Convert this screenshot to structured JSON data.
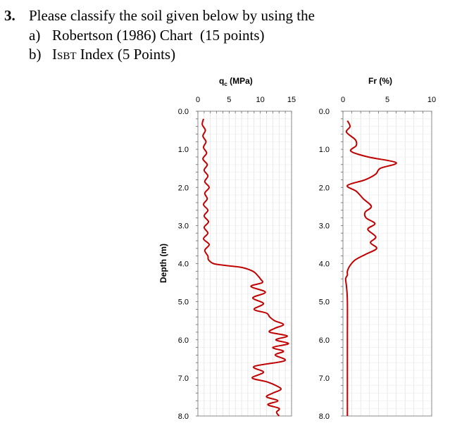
{
  "question": {
    "number": "3.",
    "text": "Please classify the soil given below by using the",
    "a_marker": "a)",
    "a_text": "Robertson (1986) Chart  (15 points)",
    "b_marker": "b)",
    "b_index_I": "I",
    "b_index_sub": "SBT",
    "b_text": " Index (5 Points)"
  },
  "colors": {
    "curve": "#c00000",
    "grid": "#d9d9d9",
    "axis": "#000000"
  },
  "chart_data": [
    {
      "type": "line",
      "title": "q꜀ (MPa)",
      "title_main": "q",
      "title_sub": "c",
      "title_rest": " (MPa)",
      "ylabel": "Depth (m)",
      "xlim": [
        0,
        15
      ],
      "ylim": [
        0,
        8
      ],
      "x_ticks": [
        "0",
        "5",
        "10",
        "15"
      ],
      "y_ticks": [
        "0.0",
        "1.0",
        "2.0",
        "3.0",
        "4.0",
        "5.0",
        "6.0",
        "7.0",
        "8.0"
      ],
      "grid": true,
      "series": [
        {
          "depth": [
            0.2,
            0.35,
            0.5,
            0.65,
            0.8,
            0.95,
            1.1,
            1.25,
            1.4,
            1.55,
            1.7,
            1.85,
            2.0,
            2.15,
            2.3,
            2.45,
            2.6,
            2.75,
            2.9,
            3.05,
            3.2,
            3.35,
            3.5,
            3.65,
            3.8,
            3.9,
            4.0,
            4.05,
            4.1,
            4.2,
            4.3,
            4.4,
            4.5,
            4.6,
            4.75,
            4.9,
            5.05,
            5.2,
            5.3,
            5.4,
            5.5,
            5.6,
            5.7,
            5.8,
            5.9,
            6.0,
            6.1,
            6.2,
            6.3,
            6.4,
            6.55,
            6.7,
            6.85,
            7.0,
            7.1,
            7.2,
            7.3,
            7.4,
            7.5,
            7.6,
            7.7,
            7.8,
            7.9,
            8.0
          ],
          "qc": [
            0.9,
            0.7,
            1.2,
            0.8,
            1.3,
            0.9,
            1.4,
            0.8,
            1.5,
            1.0,
            1.6,
            1.1,
            1.8,
            1.1,
            1.5,
            0.9,
            1.6,
            1.0,
            1.7,
            1.0,
            1.6,
            0.9,
            1.8,
            1.1,
            1.6,
            1.7,
            2.5,
            4.5,
            7.0,
            8.8,
            9.5,
            10.0,
            10.3,
            8.5,
            10.8,
            8.8,
            10.5,
            9.0,
            11.0,
            11.5,
            12.3,
            13.7,
            12.3,
            11.5,
            14.3,
            12.5,
            14.5,
            12.0,
            13.7,
            12.4,
            13.9,
            9.0,
            10.5,
            8.7,
            11.0,
            12.5,
            13.3,
            12.0,
            11.0,
            12.8,
            11.2,
            13.0,
            12.6,
            13.0
          ]
        }
      ]
    },
    {
      "type": "line",
      "title": "Fr (%)",
      "xlim": [
        0,
        10
      ],
      "ylim": [
        0,
        8
      ],
      "x_ticks": [
        "0",
        "5",
        "10"
      ],
      "y_ticks": [
        "0.0",
        "1.0",
        "2.0",
        "3.0",
        "4.0",
        "5.0",
        "6.0",
        "7.0",
        "8.0"
      ],
      "grid": true,
      "series": [
        {
          "depth": [
            0.25,
            0.4,
            0.55,
            0.75,
            0.9,
            1.05,
            1.2,
            1.35,
            1.5,
            1.65,
            1.8,
            1.95,
            2.1,
            2.3,
            2.5,
            2.65,
            2.8,
            2.95,
            3.1,
            3.3,
            3.45,
            3.6,
            3.75,
            3.9,
            4.05,
            4.2,
            4.3,
            4.4,
            4.6,
            5.0,
            6.0,
            7.0,
            8.0
          ],
          "fr": [
            0.5,
            0.8,
            0.4,
            1.4,
            1.5,
            0.9,
            2.8,
            6.0,
            4.2,
            3.7,
            2.5,
            0.5,
            1.5,
            2.3,
            3.2,
            2.5,
            2.6,
            3.6,
            2.8,
            3.7,
            3.1,
            3.8,
            2.6,
            1.4,
            0.8,
            0.5,
            0.5,
            0.3,
            0.4,
            0.5,
            0.5,
            0.5,
            0.5
          ]
        }
      ]
    }
  ]
}
